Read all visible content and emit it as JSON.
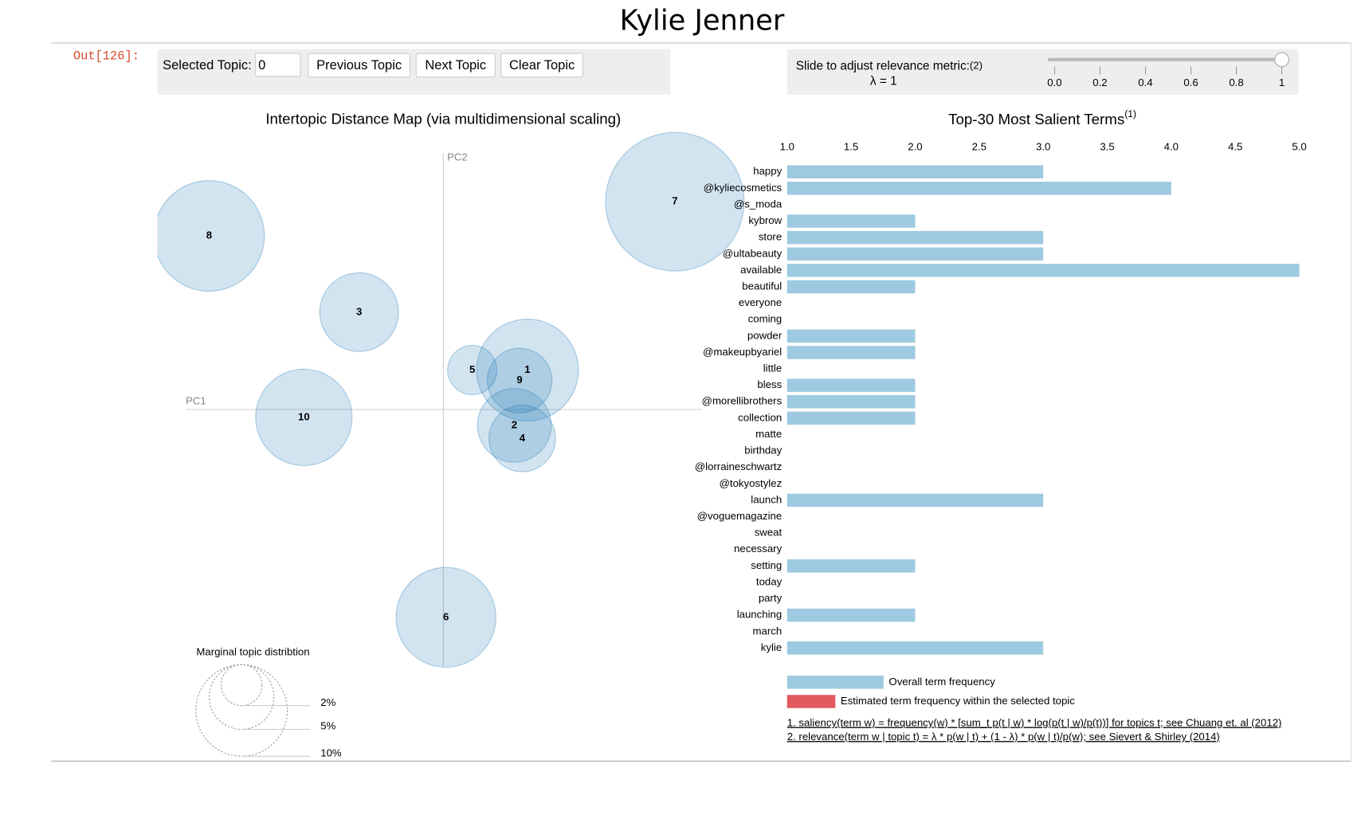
{
  "page_title": "Kylie Jenner",
  "prompt": "Out[126]:",
  "controls": {
    "selected_topic_label": "Selected Topic:",
    "selected_topic_value": "0",
    "buttons": [
      "Previous Topic",
      "Next Topic",
      "Clear Topic"
    ]
  },
  "slider": {
    "label": "Slide to adjust relevance metric:",
    "note": "(2)",
    "lambda_label": "λ = 1",
    "value": 1,
    "ticks": [
      {
        "value": 0,
        "label": "0.0"
      },
      {
        "value": 0.2,
        "label": "0.2"
      },
      {
        "value": 0.4,
        "label": "0.4"
      },
      {
        "value": 0.6,
        "label": "0.6"
      },
      {
        "value": 0.8,
        "label": "0.8"
      },
      1
    ]
  },
  "chart_data": [
    {
      "type": "bubble",
      "title": "Intertopic Distance Map (via multidimensional scaling)",
      "x_label": "PC1",
      "y_label": "PC2",
      "categories": [
        "1",
        "2",
        "3",
        "4",
        "5",
        "6",
        "7",
        "8",
        "9",
        "10"
      ],
      "x": [
        0.32,
        0.27,
        -0.32,
        0.3,
        0.11,
        0.01,
        0.88,
        -0.89,
        0.29,
        -0.53
      ],
      "y": [
        0.15,
        -0.06,
        0.37,
        -0.11,
        0.15,
        -0.79,
        0.79,
        0.66,
        0.11,
        -0.03
      ],
      "sizes": [
        12.4,
        6.5,
        7.4,
        5.3,
        2.9,
        11.9,
        22.9,
        14.6,
        5.0,
        11.1
      ],
      "color": "#1f77b4",
      "xlim": [
        -1.1,
        1.0
      ],
      "ylim": [
        -1.0,
        1.05
      ],
      "size_legend": {
        "title": "Marginal topic distribtion",
        "values": [
          2,
          5,
          10
        ],
        "value_labels": [
          "2%",
          "5%",
          "10%"
        ]
      }
    },
    {
      "type": "bar",
      "orientation": "horizontal",
      "title": "Top-30 Most Salient Terms",
      "title_note": "(1)",
      "categories": [
        "happy",
        "@kyliecosmetics",
        "@s_moda",
        "kybrow",
        "store",
        "@ultabeauty",
        "available",
        "beautiful",
        "everyone",
        "coming",
        "powder",
        "@makeupbyariel",
        "little",
        "bless",
        "@morellibrothers",
        "collection",
        "matte",
        "birthday",
        "@lorraineschwartz",
        "@tokyostylez",
        "launch",
        "@voguemagazine",
        "sweat",
        "necessary",
        "setting",
        "today",
        "party",
        "launching",
        "march",
        "kylie"
      ],
      "values": [
        3,
        4,
        1,
        2,
        3,
        3,
        5,
        2,
        1,
        1,
        2,
        2,
        1,
        2,
        2,
        2,
        1,
        1,
        1,
        1,
        3,
        1,
        1,
        1,
        2,
        1,
        1,
        2,
        1,
        3
      ],
      "color": "#9ecae1",
      "xlim": [
        1,
        5
      ],
      "xticks": [
        {
          "value": 1,
          "label": "1.0"
        },
        {
          "value": 1.5,
          "label": "1.5"
        },
        {
          "value": 2,
          "label": "2.0"
        },
        {
          "value": 2.5,
          "label": "2.5"
        },
        {
          "value": 3,
          "label": "3.0"
        },
        {
          "value": 3.5,
          "label": "3.5"
        },
        {
          "value": 4,
          "label": "4.0"
        },
        {
          "value": 4.5,
          "label": "4.5"
        },
        {
          "value": 5,
          "label": "5.0"
        }
      ],
      "legend": [
        {
          "name": "Overall term frequency",
          "color": "#9ecae1"
        },
        {
          "name": "Estimated term frequency within the selected topic",
          "color": "#e05a5e"
        }
      ]
    }
  ],
  "footnotes": [
    "1. saliency(term w) = frequency(w) * [sum_t p(t | w) * log(p(t | w)/p(t))] for topics t; see Chuang et. al (2012)",
    "2. relevance(term w | topic t) = λ * p(w | t) + (1 - λ) * p(w | t)/p(w); see Sievert & Shirley (2014)"
  ]
}
